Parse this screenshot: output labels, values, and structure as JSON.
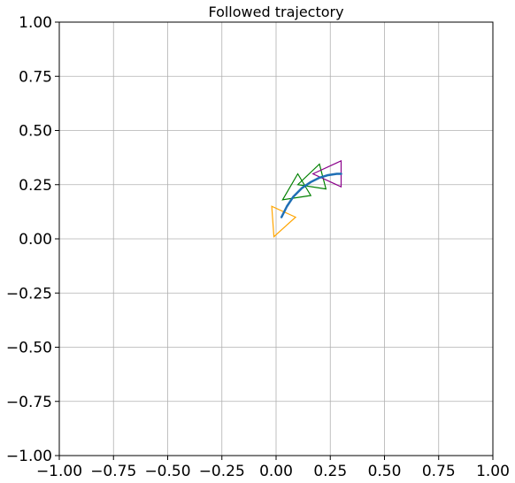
{
  "chart_data": {
    "type": "line",
    "title": "Followed trajectory",
    "xlabel": "",
    "ylabel": "",
    "xlim": [
      -1.0,
      1.0
    ],
    "ylim": [
      -1.0,
      1.0
    ],
    "grid": true,
    "x_ticks": [
      -1.0,
      -0.75,
      -0.5,
      -0.25,
      0.0,
      0.25,
      0.5,
      0.75,
      1.0
    ],
    "y_ticks": [
      -1.0,
      -0.75,
      -0.5,
      -0.25,
      0.0,
      0.25,
      0.5,
      0.75,
      1.0
    ],
    "x_tick_labels": [
      "−1.00",
      "−0.75",
      "−0.50",
      "−0.25",
      "0.00",
      "0.25",
      "0.50",
      "0.75",
      "1.00"
    ],
    "y_tick_labels": [
      "−1.00",
      "−0.75",
      "−0.50",
      "−0.25",
      "0.00",
      "0.25",
      "0.50",
      "0.75",
      "1.00"
    ],
    "trajectory": {
      "color": "#1f6fb5",
      "points": [
        [
          0.025,
          0.1
        ],
        [
          0.05,
          0.15
        ],
        [
          0.08,
          0.195
        ],
        [
          0.12,
          0.235
        ],
        [
          0.16,
          0.262
        ],
        [
          0.2,
          0.282
        ],
        [
          0.24,
          0.294
        ],
        [
          0.28,
          0.3
        ],
        [
          0.3,
          0.3
        ]
      ]
    },
    "poses": [
      {
        "color": "#ffa500",
        "vertices": [
          [
            -0.02,
            0.15
          ],
          [
            -0.01,
            0.01
          ],
          [
            0.09,
            0.1
          ]
        ]
      },
      {
        "color": "#008000",
        "vertices": [
          [
            0.03,
            0.18
          ],
          [
            0.1,
            0.3
          ],
          [
            0.16,
            0.2
          ]
        ]
      },
      {
        "color": "#008000",
        "vertices": [
          [
            0.1,
            0.25
          ],
          [
            0.2,
            0.345
          ],
          [
            0.23,
            0.23
          ]
        ]
      },
      {
        "color": "#8b008b",
        "vertices": [
          [
            0.17,
            0.3
          ],
          [
            0.3,
            0.36
          ],
          [
            0.3,
            0.24
          ]
        ]
      }
    ]
  }
}
